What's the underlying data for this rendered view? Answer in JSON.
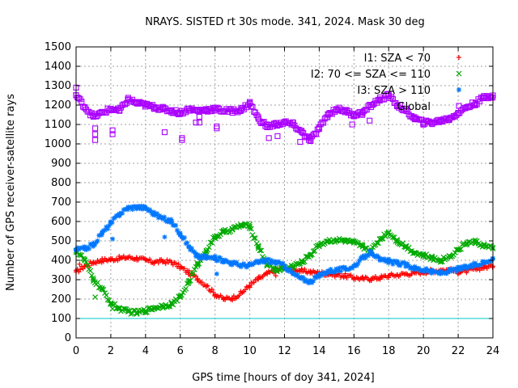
{
  "chart_data": {
    "type": "scatter",
    "title": "NRAYS. SISTED rt 30s mode. 341, 2024. Mask 30 deg",
    "xlabel": "GPS time [hours of doy 341, 2024]",
    "ylabel": "Number of GPS receiver-satellite rays",
    "xlim": [
      0,
      24
    ],
    "ylim": [
      0,
      1500
    ],
    "x_ticks": [
      "0",
      "2",
      "4",
      "6",
      "8",
      "10",
      "12",
      "14",
      "16",
      "18",
      "20",
      "22",
      "24"
    ],
    "y_ticks": [
      "0",
      "100",
      "200",
      "300",
      "400",
      "500",
      "600",
      "700",
      "800",
      "900",
      "1000",
      "1100",
      "1200",
      "1300",
      "1400",
      "1500"
    ],
    "grid": true,
    "legend_position": "top-right",
    "reference_line": {
      "y": 100,
      "color": "#00c8c8"
    },
    "series": [
      {
        "name": "I1: SZA < 70",
        "marker": "+",
        "color": "#ff0000",
        "x": [
          0,
          0.5,
          1,
          1.5,
          2,
          2.5,
          3,
          3.5,
          4,
          4.5,
          5,
          5.5,
          6,
          6.5,
          7,
          7.5,
          8,
          8.5,
          9,
          9.5,
          10,
          10.5,
          11,
          11.5,
          12,
          12.5,
          13,
          13.5,
          14,
          14.5,
          15,
          15.5,
          16,
          16.5,
          17,
          17.5,
          18,
          18.5,
          19,
          19.5,
          20,
          20.5,
          21,
          21.5,
          22,
          22.5,
          23,
          23.5,
          24
        ],
        "values": [
          340,
          370,
          390,
          400,
          405,
          410,
          415,
          410,
          400,
          390,
          395,
          390,
          365,
          335,
          305,
          270,
          225,
          200,
          205,
          230,
          270,
          305,
          330,
          350,
          360,
          355,
          345,
          340,
          335,
          330,
          325,
          320,
          310,
          305,
          305,
          310,
          320,
          325,
          330,
          335,
          340,
          345,
          350,
          350,
          340,
          345,
          355,
          365,
          370
        ]
      },
      {
        "name": "I2: 70 <= SZA <= 110",
        "marker": "x",
        "color": "#00aa00",
        "x": [
          0,
          0.5,
          1,
          1.5,
          2,
          2.5,
          3,
          3.5,
          4,
          4.5,
          5,
          5.5,
          6,
          6.5,
          7,
          7.5,
          8,
          8.5,
          9,
          9.5,
          10,
          10.5,
          11,
          11.5,
          12,
          12.5,
          13,
          13.5,
          14,
          14.5,
          15,
          15.5,
          16,
          16.5,
          17,
          17.5,
          18,
          18.5,
          19,
          19.5,
          20,
          20.5,
          21,
          21.5,
          22,
          22.5,
          23,
          23.5,
          24
        ],
        "values": [
          450,
          400,
          300,
          250,
          180,
          150,
          135,
          130,
          140,
          155,
          165,
          175,
          210,
          290,
          380,
          450,
          520,
          545,
          560,
          580,
          575,
          470,
          380,
          350,
          355,
          370,
          390,
          430,
          480,
          500,
          505,
          500,
          490,
          470,
          450,
          510,
          545,
          500,
          470,
          440,
          425,
          410,
          400,
          420,
          455,
          490,
          495,
          475,
          460
        ]
      },
      {
        "name": "I3: SZA > 110",
        "marker": "*",
        "color": "#0077ff",
        "x": [
          0,
          0.5,
          1,
          1.5,
          2,
          2.5,
          3,
          3.5,
          4,
          4.5,
          5,
          5.5,
          6,
          6.5,
          7,
          7.5,
          8,
          8.5,
          9,
          9.5,
          10,
          10.5,
          11,
          11.5,
          12,
          12.5,
          13,
          13.5,
          14,
          14.5,
          15,
          15.5,
          16,
          16.5,
          17,
          17.5,
          18,
          18.5,
          19,
          19.5,
          20,
          20.5,
          21,
          21.5,
          22,
          22.5,
          23,
          23.5,
          24
        ],
        "values": [
          455,
          460,
          480,
          540,
          590,
          640,
          670,
          675,
          670,
          640,
          615,
          600,
          540,
          470,
          420,
          415,
          410,
          400,
          385,
          375,
          375,
          390,
          400,
          390,
          370,
          330,
          305,
          290,
          320,
          345,
          350,
          355,
          370,
          410,
          445,
          400,
          395,
          385,
          375,
          360,
          350,
          340,
          335,
          345,
          355,
          365,
          375,
          390,
          410
        ]
      },
      {
        "name": "Global",
        "marker": "square",
        "color": "#aa00ff",
        "x": [
          0,
          0.5,
          1,
          1.5,
          2,
          2.5,
          3,
          3.5,
          4,
          4.5,
          5,
          5.5,
          6,
          6.5,
          7,
          7.5,
          8,
          8.5,
          9,
          9.5,
          10,
          10.5,
          11,
          11.5,
          12,
          12.5,
          13,
          13.5,
          14,
          14.5,
          15,
          15.5,
          16,
          16.5,
          17,
          17.5,
          18,
          18.5,
          19,
          19.5,
          20,
          20.5,
          21,
          21.5,
          22,
          22.5,
          23,
          23.5,
          24
        ],
        "values": [
          1250,
          1190,
          1140,
          1160,
          1180,
          1170,
          1230,
          1210,
          1200,
          1190,
          1180,
          1170,
          1160,
          1180,
          1170,
          1175,
          1180,
          1170,
          1170,
          1175,
          1210,
          1130,
          1090,
          1100,
          1110,
          1100,
          1060,
          1020,
          1080,
          1150,
          1180,
          1170,
          1150,
          1160,
          1200,
          1230,
          1250,
          1200,
          1170,
          1130,
          1110,
          1110,
          1120,
          1130,
          1160,
          1190,
          1210,
          1240,
          1250
        ]
      }
    ],
    "outliers": [
      {
        "series": "I1: SZA < 70",
        "points": [
          [
            0.2,
            380
          ],
          [
            11.5,
            320
          ]
        ]
      },
      {
        "series": "I2: 70 <= SZA <= 110",
        "points": [
          [
            1.1,
            210
          ],
          [
            2.1,
            150
          ],
          [
            11.8,
            360
          ]
        ]
      },
      {
        "series": "I3: SZA > 110",
        "points": [
          [
            2.1,
            510
          ],
          [
            5.1,
            520
          ],
          [
            6.9,
            420
          ],
          [
            8.1,
            330
          ]
        ]
      },
      {
        "series": "Global",
        "points": [
          [
            0,
            1290
          ],
          [
            1.1,
            1020
          ],
          [
            1.1,
            1050
          ],
          [
            1.1,
            1080
          ],
          [
            2.1,
            1050
          ],
          [
            2.1,
            1070
          ],
          [
            5.1,
            1060
          ],
          [
            6.1,
            1020
          ],
          [
            6.1,
            1030
          ],
          [
            6.9,
            1110
          ],
          [
            7.1,
            1110
          ],
          [
            7.1,
            1140
          ],
          [
            8.1,
            1090
          ],
          [
            8.1,
            1080
          ],
          [
            11.1,
            1030
          ],
          [
            11.6,
            1040
          ],
          [
            12.9,
            1010
          ],
          [
            13.4,
            1020
          ],
          [
            15.9,
            1100
          ],
          [
            16.9,
            1120
          ]
        ]
      }
    ]
  }
}
